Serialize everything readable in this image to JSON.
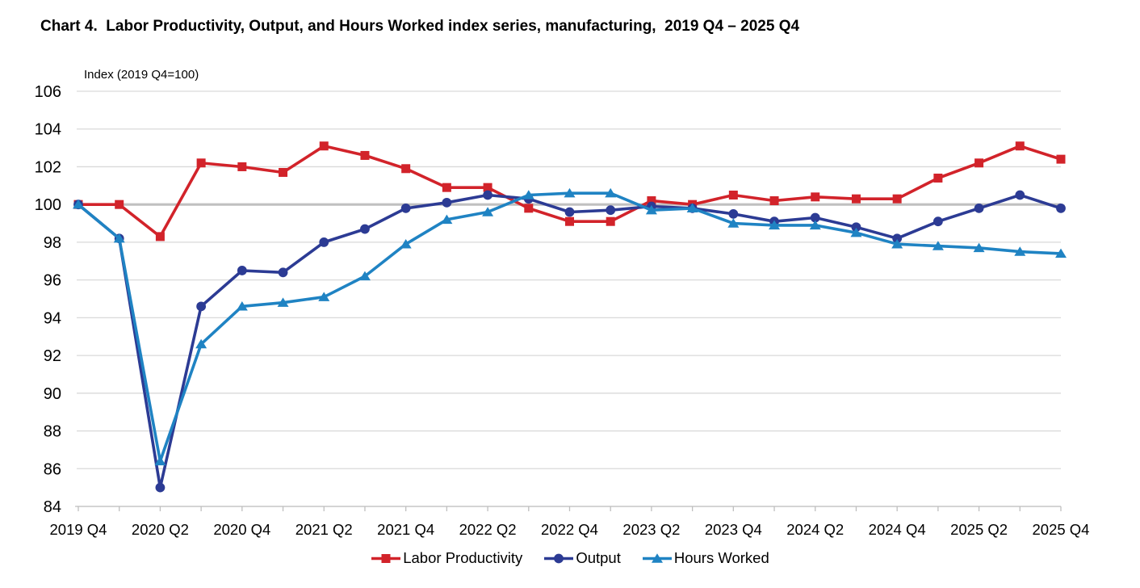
{
  "header": {
    "title": "Chart 4.  Labor Productivity, Output, and Hours Worked index series, manufacturing,  2019 Q4 – 2025 Q4"
  },
  "chart_data": {
    "type": "line",
    "title": "Chart 4.  Labor Productivity, Output, and Hours Worked index series, manufacturing,  2019 Q4 – 2025 Q4",
    "axis_note": "Index (2019 Q4=100)",
    "categories": [
      "2019 Q4",
      "2020 Q1",
      "2020 Q2",
      "2020 Q3",
      "2020 Q4",
      "2021 Q1",
      "2021 Q2",
      "2021 Q3",
      "2021 Q4",
      "2022 Q1",
      "2022 Q2",
      "2022 Q3",
      "2022 Q4",
      "2023 Q1",
      "2023 Q2",
      "2023 Q3",
      "2023 Q4",
      "2024 Q1",
      "2024 Q2",
      "2024 Q3",
      "2024 Q4",
      "2025 Q1",
      "2025 Q2",
      "2025 Q3",
      "2025 Q4"
    ],
    "x_tick_labels": [
      "2019 Q4",
      "2020 Q2",
      "2020 Q4",
      "2021 Q2",
      "2021 Q4",
      "2022 Q2",
      "2022 Q4",
      "2023 Q2",
      "2023 Q4",
      "2024 Q2",
      "2024 Q4",
      "2025 Q2",
      "2025 Q4"
    ],
    "x_label_every": 2,
    "series": [
      {
        "name": "Labor Productivity",
        "color": "#D2232A",
        "marker": "square",
        "values": [
          100.0,
          100.0,
          98.3,
          102.2,
          102.0,
          101.7,
          103.1,
          102.6,
          101.9,
          100.9,
          100.9,
          99.8,
          99.1,
          99.1,
          100.2,
          100.0,
          100.5,
          100.2,
          100.4,
          100.3,
          100.3,
          101.4,
          102.2,
          103.1,
          102.4
        ]
      },
      {
        "name": "Output",
        "color": "#2C3B94",
        "marker": "circle",
        "values": [
          100.0,
          98.2,
          85.0,
          94.6,
          96.5,
          96.4,
          98.0,
          98.7,
          99.8,
          100.1,
          100.5,
          100.3,
          99.6,
          99.7,
          99.9,
          99.8,
          99.5,
          99.1,
          99.3,
          98.8,
          98.2,
          99.1,
          99.8,
          100.5,
          99.8
        ]
      },
      {
        "name": "Hours Worked",
        "color": "#1F83C3",
        "marker": "triangle",
        "values": [
          100.0,
          98.2,
          86.4,
          92.6,
          94.6,
          94.8,
          95.1,
          96.2,
          97.9,
          99.2,
          99.6,
          100.5,
          100.6,
          100.6,
          99.7,
          99.8,
          99.0,
          98.9,
          98.9,
          98.5,
          97.9,
          97.8,
          97.7,
          97.5,
          97.4
        ]
      }
    ],
    "ylim": [
      84,
      106
    ],
    "y_tick_step": 2,
    "y_tick_labels": [
      "106",
      "104",
      "102",
      "100",
      "98",
      "96",
      "94",
      "92",
      "90",
      "88",
      "86",
      "84"
    ],
    "grid": "horizontal",
    "emphasized_gridline": 100,
    "legend_position": "bottom",
    "colors": {
      "gridline": "#D9D9D9",
      "emphasized_gridline": "#C0C0C0",
      "axis": "#BFBFBF",
      "text": "#000000"
    }
  }
}
